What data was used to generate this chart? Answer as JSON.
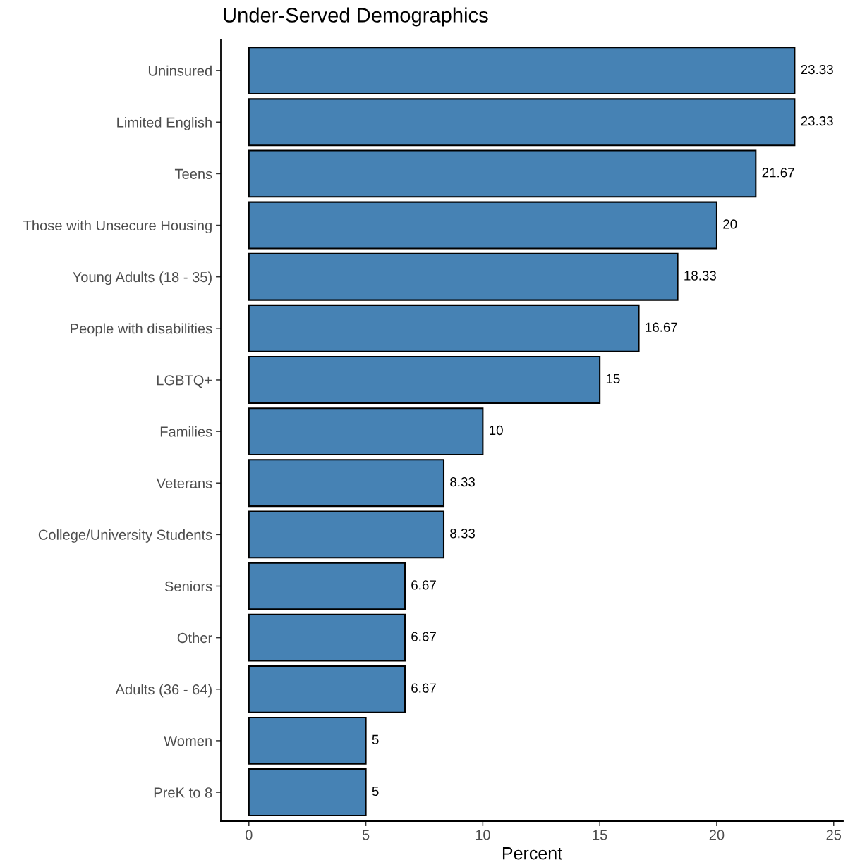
{
  "chart_data": {
    "type": "bar",
    "orientation": "horizontal",
    "title": "Under-Served Demographics",
    "xlabel": "Percent",
    "categories": [
      "Uninsured",
      "Limited English",
      "Teens",
      "Those with Unsecure Housing",
      "Young Adults (18 - 35)",
      "People with disabilities",
      "LGBTQ+",
      "Families",
      "Veterans",
      "College/University Students",
      "Seniors",
      "Other",
      "Adults (36 - 64)",
      "Women",
      "PreK to 8"
    ],
    "values": [
      23.33,
      23.33,
      21.67,
      20,
      18.33,
      16.67,
      15,
      10,
      8.33,
      8.33,
      6.67,
      6.67,
      6.67,
      5,
      5
    ],
    "color": "#4682b4",
    "xlim": [
      -1.2,
      25.4
    ],
    "xticks": [
      0,
      5,
      10,
      15,
      20,
      25
    ],
    "grid": false,
    "data_labels": true
  }
}
